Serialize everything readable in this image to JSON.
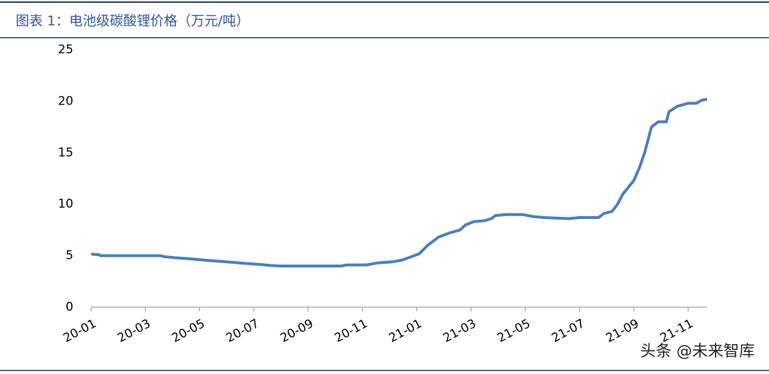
{
  "chart_data": {
    "type": "line",
    "title": "图表 1：电池级碳酸锂价格（万元/吨）",
    "x": [
      0,
      0.3,
      0.35,
      2.55,
      2.7,
      3.1,
      3.6,
      4.25,
      5.0,
      5.7,
      6.2,
      6.6,
      7.0,
      9.24,
      9.4,
      10.15,
      10.55,
      11.1,
      11.5,
      11.9,
      12.1,
      12.4,
      12.8,
      13.2,
      13.6,
      13.8,
      14.1,
      14.5,
      14.75,
      14.9,
      15.3,
      15.9,
      16.3,
      16.7,
      17.6,
      18.0,
      18.7,
      18.9,
      19.2,
      19.4,
      19.6,
      20.0,
      20.2,
      20.4,
      20.65,
      20.9,
      21.2,
      21.3,
      21.6,
      22.0,
      22.3,
      22.5,
      22.7
    ],
    "series": [
      {
        "name": "电池级碳酸锂价格",
        "color": "#4a7ebb",
        "values": [
          5.15,
          5.1,
          5.0,
          5.0,
          4.9,
          4.8,
          4.7,
          4.55,
          4.4,
          4.25,
          4.15,
          4.05,
          4.0,
          4.0,
          4.1,
          4.1,
          4.3,
          4.4,
          4.6,
          5.0,
          5.2,
          6.0,
          6.8,
          7.2,
          7.5,
          8.0,
          8.3,
          8.4,
          8.6,
          8.9,
          9.0,
          9.0,
          8.8,
          8.7,
          8.6,
          8.7,
          8.7,
          9.1,
          9.3,
          10.0,
          11.0,
          12.3,
          13.5,
          15.0,
          17.5,
          18.0,
          18.0,
          19.0,
          19.5,
          19.8,
          19.8,
          20.1,
          20.2
        ]
      }
    ],
    "xlim": [
      0,
      22.7
    ],
    "xticks": [
      {
        "value": 0,
        "label": "20-01"
      },
      {
        "value": 2,
        "label": "20-03"
      },
      {
        "value": 4,
        "label": "20-05"
      },
      {
        "value": 6,
        "label": "20-07"
      },
      {
        "value": 8,
        "label": "20-09"
      },
      {
        "value": 10,
        "label": "20-11"
      },
      {
        "value": 12,
        "label": "21-01"
      },
      {
        "value": 14,
        "label": "21-03"
      },
      {
        "value": 16,
        "label": "21-05"
      },
      {
        "value": 18,
        "label": "21-07"
      },
      {
        "value": 20,
        "label": "21-09"
      },
      {
        "value": 22,
        "label": "21-11"
      }
    ],
    "ylim": [
      0,
      25
    ],
    "yticks": [
      0,
      5,
      10,
      15,
      20,
      25
    ],
    "grid": false
  },
  "watermark": "头条 @未来智库"
}
